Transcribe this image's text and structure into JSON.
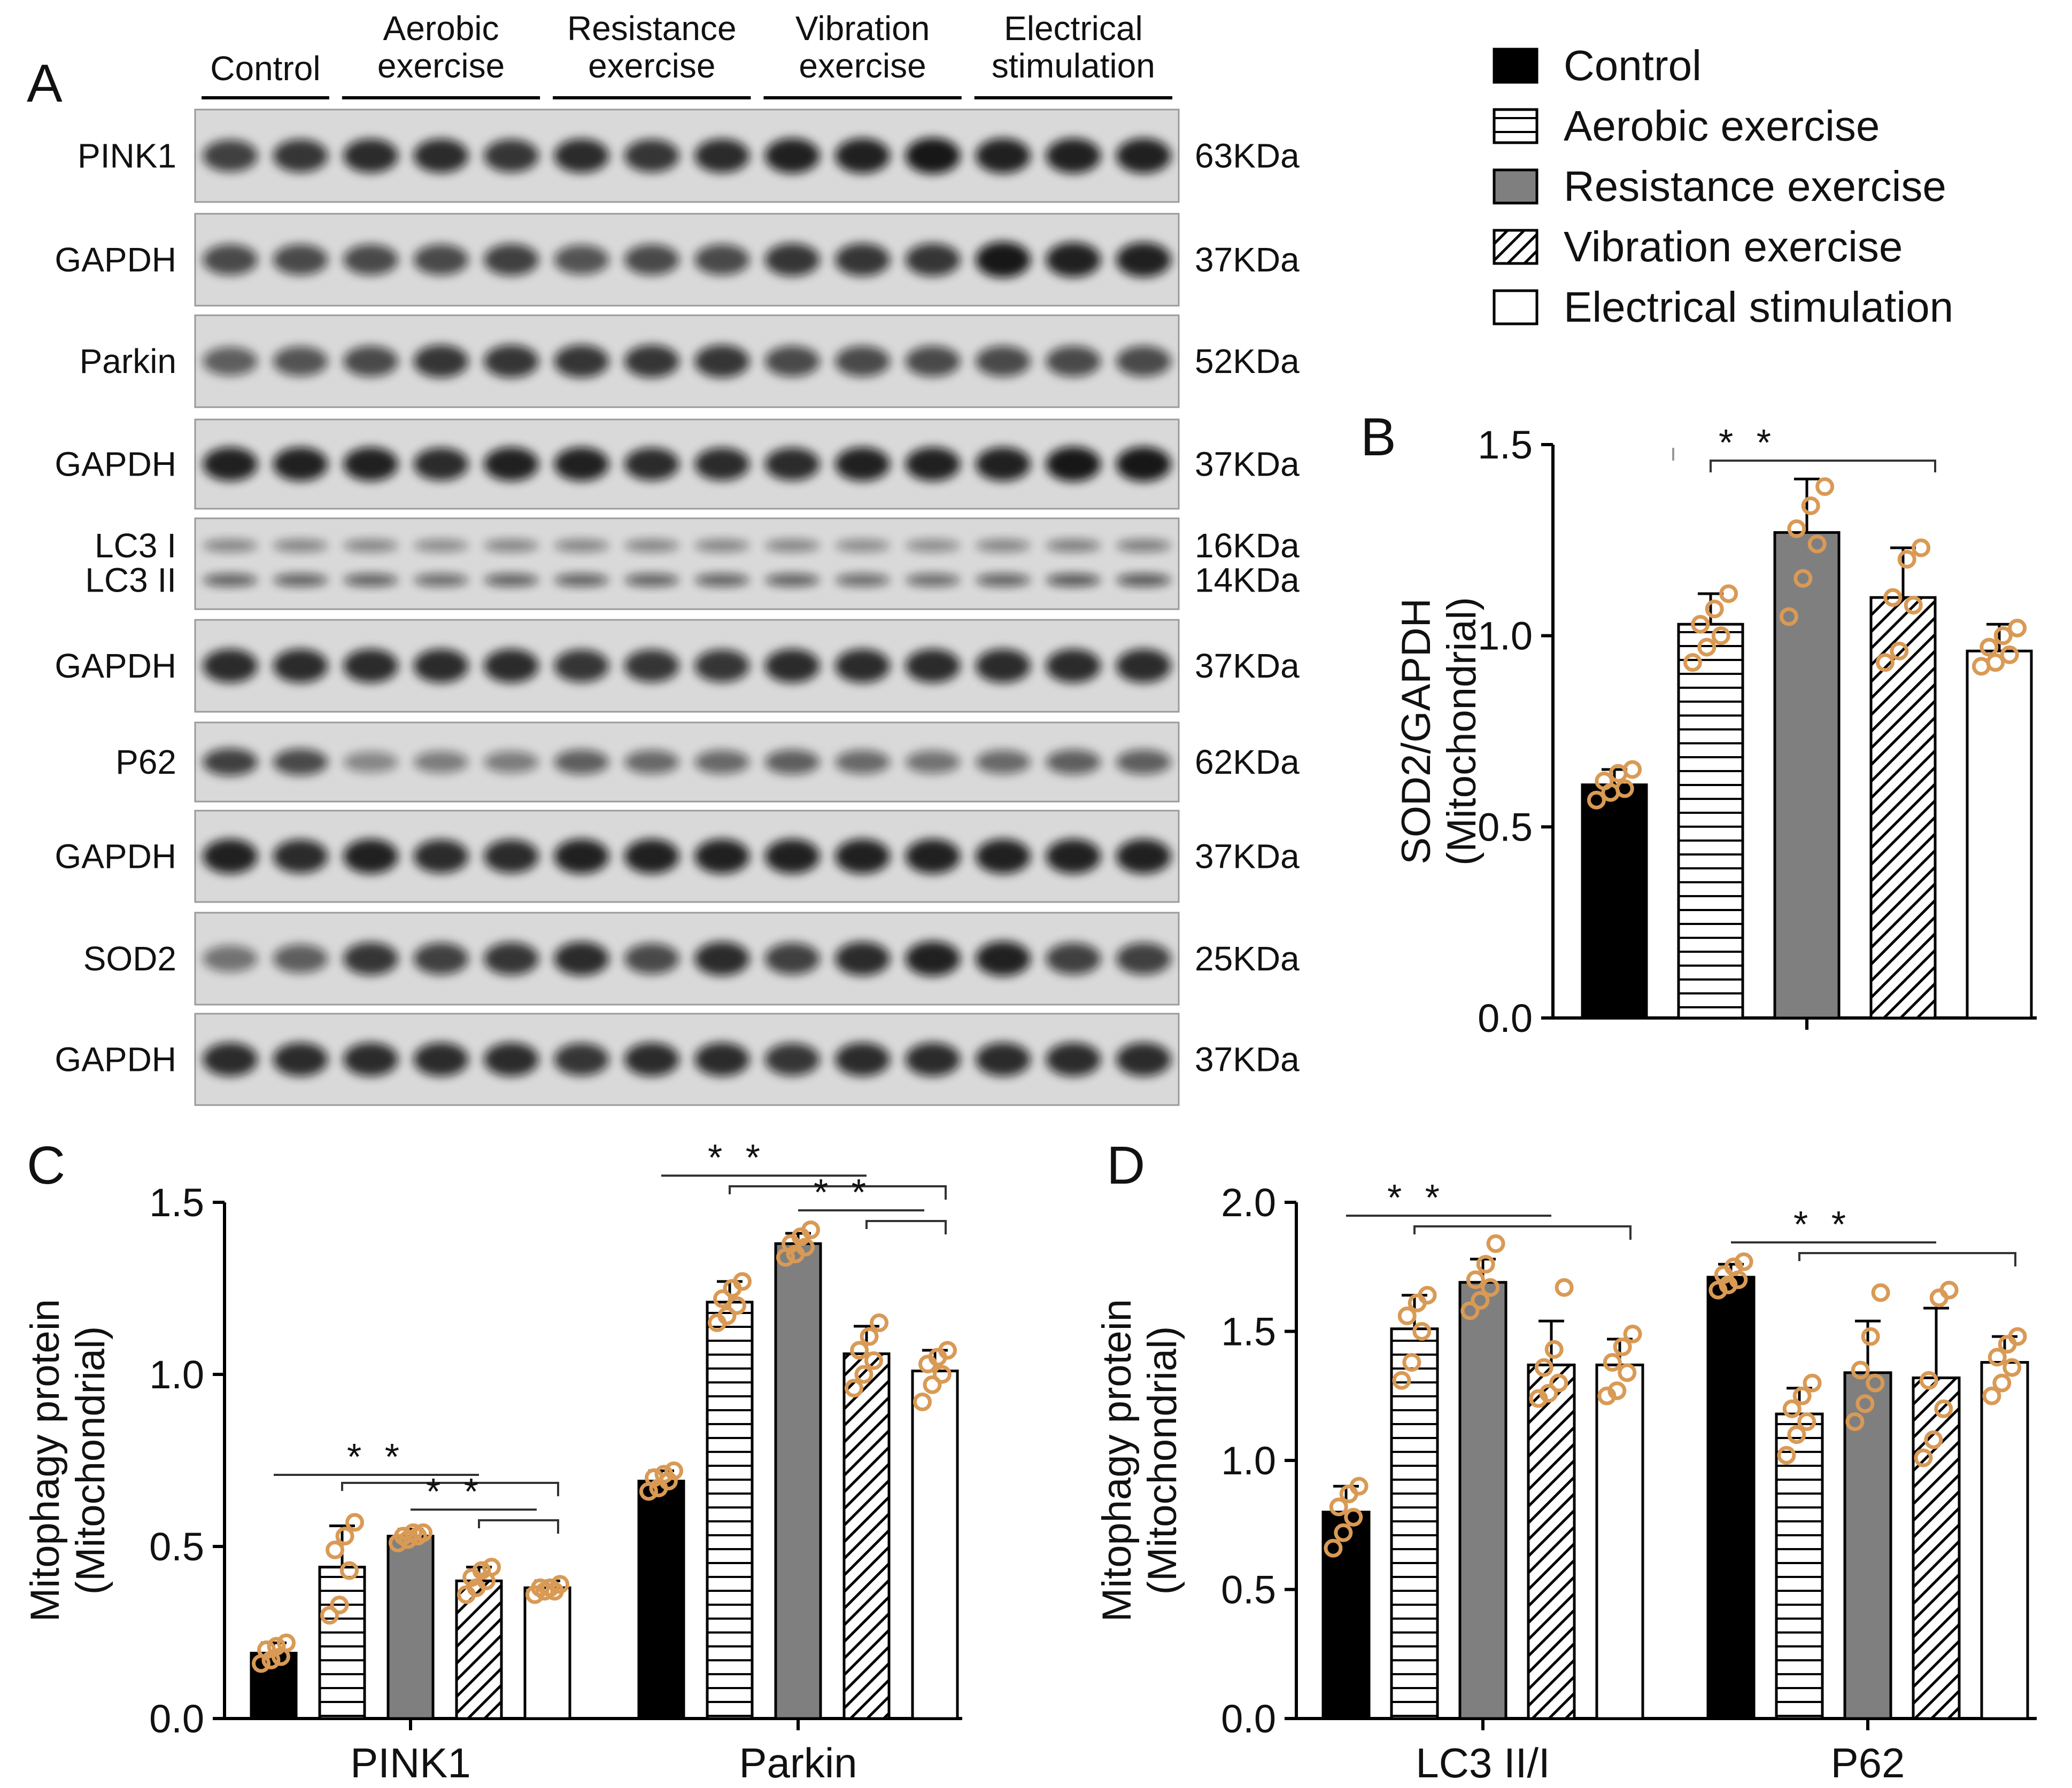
{
  "colors": {
    "control": "#000000",
    "resistance": "#7f7f7f",
    "dots": "#d99a55",
    "blot_bg": "#d9d9d9",
    "band": "#0a0a0a"
  },
  "legend": {
    "items": [
      {
        "label": "Control",
        "fill": "solid-black"
      },
      {
        "label": "Aerobic exercise",
        "fill": "horizontal-lines"
      },
      {
        "label": "Resistance exercise",
        "fill": "solid-gray"
      },
      {
        "label": "Vibration exercise",
        "fill": "diagonal-hatch"
      },
      {
        "label": "Electrical stimulation",
        "fill": "white"
      }
    ]
  },
  "blot": {
    "panel_letter": "A",
    "groups": [
      {
        "label": [
          "Control"
        ],
        "lanes": 2
      },
      {
        "label": [
          "Aerobic",
          "exercise"
        ],
        "lanes": 3
      },
      {
        "label": [
          "Resistance",
          "exercise"
        ],
        "lanes": 3
      },
      {
        "label": [
          "Vibration",
          "exercise"
        ],
        "lanes": 3
      },
      {
        "label": [
          "Electrical",
          "stimulation"
        ],
        "lanes": 3
      }
    ],
    "rows": [
      {
        "protein": "PINK1",
        "size": "63KDa",
        "intensity": [
          0.75,
          0.8,
          0.85,
          0.85,
          0.8,
          0.85,
          0.8,
          0.85,
          0.9,
          0.9,
          0.95,
          0.9,
          0.9,
          0.9
        ]
      },
      {
        "protein": "GAPDH",
        "size": "37KDa",
        "intensity": [
          0.7,
          0.7,
          0.7,
          0.7,
          0.75,
          0.65,
          0.7,
          0.7,
          0.8,
          0.8,
          0.8,
          0.95,
          0.9,
          0.9
        ]
      },
      {
        "protein": "Parkin",
        "size": "52KDa",
        "intensity": [
          0.6,
          0.65,
          0.7,
          0.8,
          0.8,
          0.8,
          0.8,
          0.8,
          0.7,
          0.7,
          0.7,
          0.7,
          0.7,
          0.7
        ]
      },
      {
        "protein": "GAPDH",
        "size": "37KDa",
        "intensity": [
          0.9,
          0.9,
          0.9,
          0.85,
          0.9,
          0.9,
          0.85,
          0.85,
          0.85,
          0.9,
          0.9,
          0.9,
          0.95,
          0.95
        ]
      },
      {
        "protein": "LC3 I",
        "size": "16KDa",
        "protein2": "LC3 II",
        "size2": "14KDa",
        "intensity": [
          0.6,
          0.6,
          0.6,
          0.55,
          0.6,
          0.6,
          0.6,
          0.6,
          0.6,
          0.55,
          0.55,
          0.6,
          0.65,
          0.65
        ]
      },
      {
        "protein": "GAPDH",
        "size": "37KDa",
        "intensity": [
          0.85,
          0.85,
          0.85,
          0.85,
          0.85,
          0.8,
          0.8,
          0.8,
          0.85,
          0.85,
          0.85,
          0.85,
          0.85,
          0.85
        ]
      },
      {
        "protein": "P62",
        "size": "62KDa",
        "intensity": [
          0.75,
          0.7,
          0.4,
          0.45,
          0.45,
          0.6,
          0.55,
          0.55,
          0.6,
          0.55,
          0.5,
          0.55,
          0.6,
          0.6
        ]
      },
      {
        "protein": "GAPDH",
        "size": "37KDa",
        "intensity": [
          0.9,
          0.85,
          0.9,
          0.85,
          0.85,
          0.9,
          0.9,
          0.9,
          0.9,
          0.9,
          0.9,
          0.9,
          0.9,
          0.9
        ]
      },
      {
        "protein": "SOD2",
        "size": "25KDa",
        "intensity": [
          0.5,
          0.6,
          0.8,
          0.75,
          0.8,
          0.85,
          0.7,
          0.85,
          0.75,
          0.85,
          0.9,
          0.9,
          0.75,
          0.75
        ]
      },
      {
        "protein": "GAPDH",
        "size": "37KDa",
        "intensity": [
          0.85,
          0.85,
          0.85,
          0.85,
          0.85,
          0.8,
          0.85,
          0.85,
          0.8,
          0.85,
          0.85,
          0.85,
          0.85,
          0.85
        ]
      }
    ]
  },
  "chart_data": [
    {
      "panel": "B",
      "type": "bar",
      "ylabel": [
        "SOD2/GAPDH",
        "(Mitochondrial)"
      ],
      "ylim": [
        0,
        1.5
      ],
      "yticks": [
        "0.0",
        "0.5",
        "1.0",
        "1.5"
      ],
      "categories": [
        ""
      ],
      "series": [
        {
          "name": "Control",
          "values": [
            0.61
          ],
          "error": [
            0.04
          ],
          "points": [
            [
              0.57,
              0.59,
              0.6,
              0.62,
              0.64,
              0.65
            ]
          ]
        },
        {
          "name": "Aerobic exercise",
          "values": [
            1.03
          ],
          "error": [
            0.08
          ],
          "points": [
            [
              0.93,
              0.97,
              1.0,
              1.03,
              1.07,
              1.11
            ]
          ]
        },
        {
          "name": "Resistance exercise",
          "values": [
            1.27
          ],
          "error": [
            0.14
          ],
          "points": [
            [
              1.05,
              1.15,
              1.24,
              1.28,
              1.34,
              1.39
            ]
          ]
        },
        {
          "name": "Vibration exercise",
          "values": [
            1.1
          ],
          "error": [
            0.13
          ],
          "points": [
            [
              0.93,
              0.96,
              1.08,
              1.1,
              1.2,
              1.23
            ]
          ]
        },
        {
          "name": "Electrical stimulation",
          "values": [
            0.96
          ],
          "error": [
            0.07
          ],
          "points": [
            [
              0.92,
              0.93,
              0.95,
              0.97,
              1.0,
              1.02
            ]
          ]
        }
      ],
      "annotations": [
        "* *"
      ]
    },
    {
      "panel": "C",
      "type": "bar",
      "ylabel": [
        "Mitophagy protein",
        "(Mitochondrial)"
      ],
      "ylim": [
        0,
        1.5
      ],
      "yticks": [
        "0.0",
        "0.5",
        "1.0",
        "1.5"
      ],
      "categories": [
        "PINK1",
        "Parkin"
      ],
      "series": [
        {
          "name": "Control",
          "values": [
            0.19,
            0.69
          ],
          "error": [
            0.03,
            0.03
          ],
          "points": [
            [
              0.16,
              0.17,
              0.18,
              0.2,
              0.21,
              0.22
            ],
            [
              0.66,
              0.67,
              0.69,
              0.7,
              0.71,
              0.72
            ]
          ]
        },
        {
          "name": "Aerobic exercise",
          "values": [
            0.44,
            1.21
          ],
          "error": [
            0.12,
            0.06
          ],
          "points": [
            [
              0.3,
              0.33,
              0.43,
              0.49,
              0.53,
              0.57
            ],
            [
              1.15,
              1.17,
              1.2,
              1.22,
              1.25,
              1.27
            ]
          ]
        },
        {
          "name": "Resistance exercise",
          "values": [
            0.53,
            1.38
          ],
          "error": [
            0.02,
            0.03
          ],
          "points": [
            [
              0.51,
              0.52,
              0.53,
              0.53,
              0.54,
              0.54
            ],
            [
              1.34,
              1.35,
              1.37,
              1.38,
              1.4,
              1.42
            ]
          ]
        },
        {
          "name": "Vibration exercise",
          "values": [
            0.4,
            1.06
          ],
          "error": [
            0.04,
            0.08
          ],
          "points": [
            [
              0.36,
              0.38,
              0.4,
              0.41,
              0.43,
              0.44
            ],
            [
              0.96,
              1.0,
              1.04,
              1.07,
              1.11,
              1.15
            ]
          ]
        },
        {
          "name": "Electrical stimulation",
          "values": [
            0.38,
            1.01
          ],
          "error": [
            0.02,
            0.06
          ],
          "points": [
            [
              0.36,
              0.37,
              0.37,
              0.38,
              0.38,
              0.39
            ],
            [
              0.92,
              0.97,
              1.0,
              1.03,
              1.05,
              1.07
            ]
          ]
        }
      ],
      "annotations": [
        "* *",
        "* *",
        "* *",
        "* *"
      ]
    },
    {
      "panel": "D",
      "type": "bar",
      "ylabel": [
        "Mitophagy protein",
        "(Mitochondrial)"
      ],
      "ylim": [
        0,
        2.0
      ],
      "yticks": [
        "0.0",
        "0.5",
        "1.0",
        "1.5",
        "2.0"
      ],
      "categories": [
        "LC3 II/I",
        "P62"
      ],
      "series": [
        {
          "name": "Control",
          "values": [
            0.8,
            1.71
          ],
          "error": [
            0.1,
            0.05
          ],
          "points": [
            [
              0.66,
              0.72,
              0.78,
              0.82,
              0.87,
              0.9
            ],
            [
              1.66,
              1.68,
              1.7,
              1.72,
              1.75,
              1.77
            ]
          ]
        },
        {
          "name": "Aerobic exercise",
          "values": [
            1.51,
            1.18
          ],
          "error": [
            0.13,
            0.1
          ],
          "points": [
            [
              1.31,
              1.38,
              1.5,
              1.56,
              1.61,
              1.64
            ],
            [
              1.02,
              1.1,
              1.15,
              1.2,
              1.25,
              1.3
            ]
          ]
        },
        {
          "name": "Resistance exercise",
          "values": [
            1.69,
            1.34
          ],
          "error": [
            0.09,
            0.2
          ],
          "points": [
            [
              1.58,
              1.62,
              1.67,
              1.7,
              1.76,
              1.84
            ],
            [
              1.15,
              1.22,
              1.3,
              1.35,
              1.48,
              1.65
            ]
          ]
        },
        {
          "name": "Vibration exercise",
          "values": [
            1.37,
            1.32
          ],
          "error": [
            0.17,
            0.27
          ],
          "points": [
            [
              1.24,
              1.26,
              1.3,
              1.36,
              1.43,
              1.67
            ],
            [
              1.01,
              1.08,
              1.2,
              1.31,
              1.63,
              1.66
            ]
          ]
        },
        {
          "name": "Electrical stimulation",
          "values": [
            1.37,
            1.38
          ],
          "error": [
            0.1,
            0.1
          ],
          "points": [
            [
              1.25,
              1.27,
              1.34,
              1.38,
              1.44,
              1.49
            ],
            [
              1.25,
              1.3,
              1.36,
              1.4,
              1.45,
              1.48
            ]
          ]
        }
      ],
      "annotations": [
        "* *",
        "* *"
      ]
    }
  ]
}
